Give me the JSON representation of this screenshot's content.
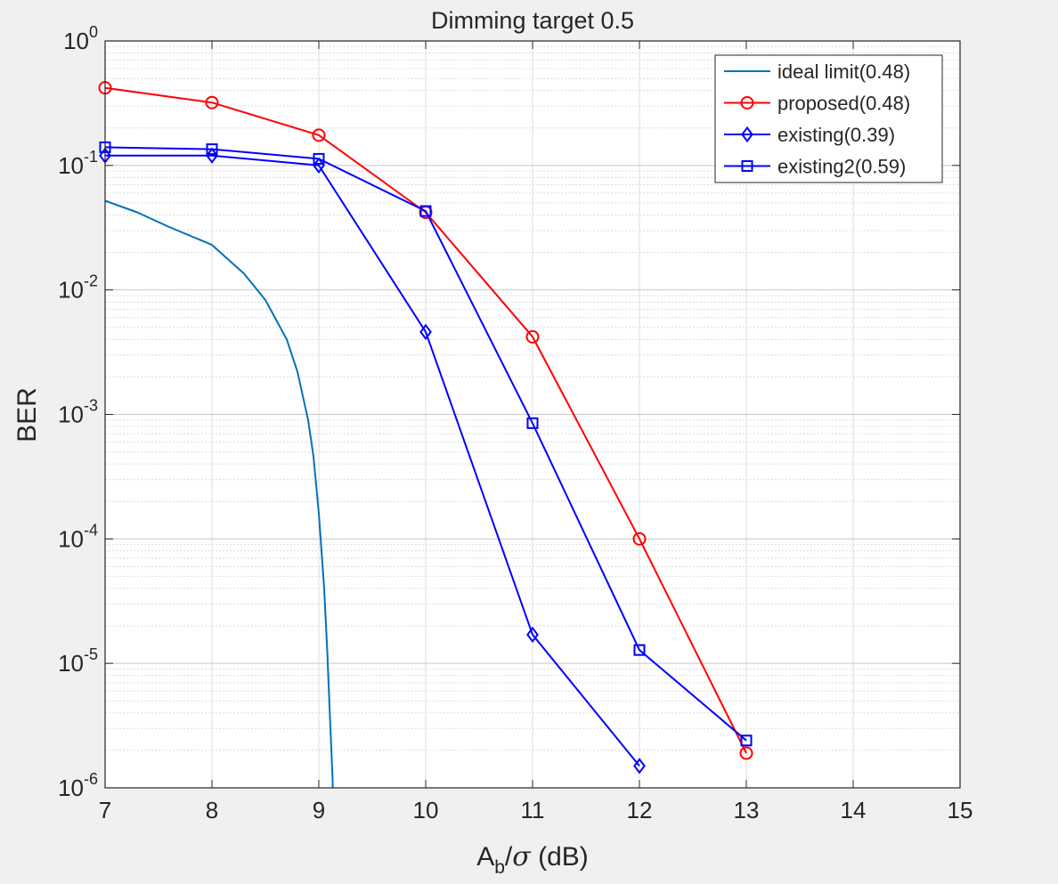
{
  "chart_data": {
    "type": "line",
    "title": "Dimming target 0.5",
    "xlabel": {
      "base": "A",
      "sub": "b",
      "slash": "/",
      "greek": "σ",
      "unit": " (dB)"
    },
    "ylabel": "BER",
    "xlim": [
      7,
      15
    ],
    "ylim": [
      1e-06,
      1
    ],
    "yscale": "log",
    "grid": true,
    "minor_grid": true,
    "legend_position": "top-right",
    "x_ticks": [
      "7",
      "8",
      "9",
      "10",
      "11",
      "12",
      "13",
      "14",
      "15"
    ],
    "y_ticks": [
      {
        "base": "10",
        "exp": "0"
      },
      {
        "base": "10",
        "exp": "-1"
      },
      {
        "base": "10",
        "exp": "-2"
      },
      {
        "base": "10",
        "exp": "-3"
      },
      {
        "base": "10",
        "exp": "-4"
      },
      {
        "base": "10",
        "exp": "-5"
      },
      {
        "base": "10",
        "exp": "-6"
      }
    ],
    "series": [
      {
        "name": "ideal limit(0.48)",
        "color": "#0072bd",
        "marker": "none",
        "x": [
          7.0,
          7.3,
          7.6,
          8.0,
          8.3,
          8.5,
          8.7,
          8.8,
          8.9,
          8.95,
          9.0,
          9.05,
          9.08,
          9.1,
          9.12,
          9.13,
          9.13
        ],
        "y": [
          0.052,
          0.042,
          0.032,
          0.023,
          0.0135,
          0.0083,
          0.004,
          0.0022,
          0.0009,
          0.00046,
          0.00016,
          4e-05,
          1.2e-05,
          4.5e-06,
          1.8e-06,
          1.1e-06,
          1e-06
        ]
      },
      {
        "name": "proposed(0.48)",
        "color": "#ff0000",
        "marker": "circle",
        "x": [
          7,
          8,
          9,
          10,
          11,
          12,
          13
        ],
        "y": [
          0.42,
          0.32,
          0.175,
          0.042,
          0.0042,
          0.0001,
          1.9e-06
        ]
      },
      {
        "name": "existing(0.39)",
        "color": "#0000ff",
        "marker": "diamond",
        "x": [
          7,
          8,
          9,
          10,
          11,
          12
        ],
        "y": [
          0.12,
          0.12,
          0.1,
          0.0046,
          1.7e-05,
          1.5e-06
        ]
      },
      {
        "name": "existing2(0.59)",
        "color": "#0000ff",
        "marker": "square",
        "x": [
          7,
          8,
          9,
          10,
          11,
          12,
          13
        ],
        "y": [
          0.14,
          0.135,
          0.113,
          0.043,
          0.00085,
          1.28e-05,
          2.4e-06
        ]
      }
    ]
  }
}
